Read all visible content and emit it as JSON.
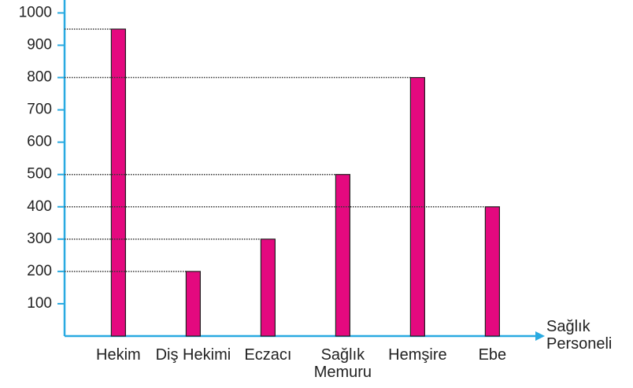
{
  "chart_data": {
    "type": "bar",
    "x_label": "Sağlık Personeli",
    "categories": [
      "Hekim",
      "Diş Hekimi",
      "Eczacı",
      "Sağlık Memuru",
      "Hemşire",
      "Ebe"
    ],
    "values": [
      950,
      200,
      300,
      500,
      800,
      400
    ],
    "color": "#e4097f",
    "axis_color": "#29aae1",
    "ylim": [
      0,
      1040
    ],
    "yticks": [
      100,
      200,
      300,
      400,
      500,
      600,
      700,
      800,
      900,
      1000
    ],
    "reference_lines": true
  }
}
